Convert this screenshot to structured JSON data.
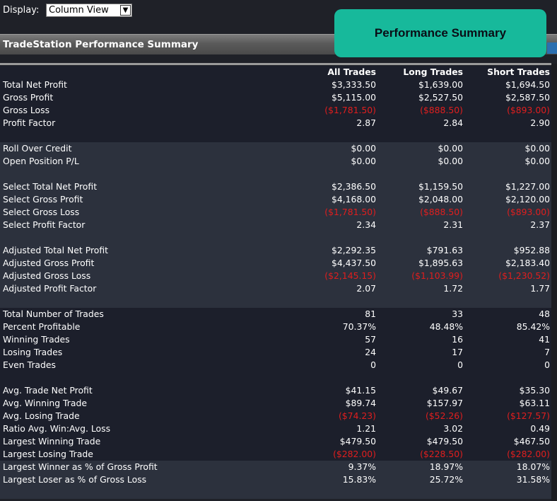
{
  "display": {
    "label": "Display:",
    "selected": "Column View"
  },
  "badge": "Performance Summary",
  "title": "TradeStation Performance Summary",
  "columns": [
    "All Trades",
    "Long Trades",
    "Short Trades"
  ],
  "groups": [
    {
      "shade": "dark",
      "rows": [
        {
          "label": "Total Net Profit",
          "values": [
            "$3,333.50",
            "$1,639.00",
            "$1,694.50"
          ]
        },
        {
          "label": "Gross Profit",
          "values": [
            "$5,115.00",
            "$2,527.50",
            "$2,587.50"
          ]
        },
        {
          "label": "Gross Loss",
          "values": [
            "($1,781.50)",
            "($888.50)",
            "($893.00)"
          ],
          "neg": true
        },
        {
          "label": "Profit Factor",
          "values": [
            "2.87",
            "2.84",
            "2.90"
          ]
        },
        {
          "label": "",
          "values": [
            "",
            "",
            ""
          ]
        }
      ]
    },
    {
      "shade": "light",
      "rows": [
        {
          "label": "Roll Over Credit",
          "values": [
            "$0.00",
            "$0.00",
            "$0.00"
          ]
        },
        {
          "label": "Open Position P/L",
          "values": [
            "$0.00",
            "$0.00",
            "$0.00"
          ]
        },
        {
          "label": "",
          "values": [
            "",
            "",
            ""
          ]
        },
        {
          "label": "Select Total Net Profit",
          "values": [
            "$2,386.50",
            "$1,159.50",
            "$1,227.00"
          ]
        },
        {
          "label": "Select Gross Profit",
          "values": [
            "$4,168.00",
            "$2,048.00",
            "$2,120.00"
          ]
        },
        {
          "label": "Select Gross Loss",
          "values": [
            "($1,781.50)",
            "($888.50)",
            "($893.00)"
          ],
          "neg": true
        },
        {
          "label": "Select Profit Factor",
          "values": [
            "2.34",
            "2.31",
            "2.37"
          ]
        },
        {
          "label": "",
          "values": [
            "",
            "",
            ""
          ]
        },
        {
          "label": "Adjusted Total Net Profit",
          "values": [
            "$2,292.35",
            "$791.63",
            "$952.88"
          ]
        },
        {
          "label": "Adjusted Gross Profit",
          "values": [
            "$4,437.50",
            "$1,895.63",
            "$2,183.40"
          ]
        },
        {
          "label": "Adjusted Gross Loss",
          "values": [
            "($2,145.15)",
            "($1,103.99)",
            "($1,230.52)"
          ],
          "neg": true
        },
        {
          "label": "Adjusted Profit Factor",
          "values": [
            "2.07",
            "1.72",
            "1.77"
          ]
        },
        {
          "label": "",
          "values": [
            "",
            "",
            ""
          ]
        }
      ]
    },
    {
      "shade": "dark",
      "rows": [
        {
          "label": "Total Number of Trades",
          "values": [
            "81",
            "33",
            "48"
          ]
        },
        {
          "label": "Percent Profitable",
          "values": [
            "70.37%",
            "48.48%",
            "85.42%"
          ]
        },
        {
          "label": "Winning Trades",
          "values": [
            "57",
            "16",
            "41"
          ]
        },
        {
          "label": "Losing Trades",
          "values": [
            "24",
            "17",
            "7"
          ]
        },
        {
          "label": "Even Trades",
          "values": [
            "0",
            "0",
            "0"
          ]
        },
        {
          "label": "",
          "values": [
            "",
            "",
            ""
          ]
        },
        {
          "label": "Avg. Trade Net Profit",
          "values": [
            "$41.15",
            "$49.67",
            "$35.30"
          ]
        },
        {
          "label": "Avg. Winning Trade",
          "values": [
            "$89.74",
            "$157.97",
            "$63.11"
          ]
        },
        {
          "label": "Avg. Losing Trade",
          "values": [
            "($74.23)",
            "($52.26)",
            "($127.57)"
          ],
          "neg": true
        },
        {
          "label": "Ratio Avg. Win:Avg. Loss",
          "values": [
            "1.21",
            "3.02",
            "0.49"
          ]
        },
        {
          "label": "Largest Winning Trade",
          "values": [
            "$479.50",
            "$479.50",
            "$467.50"
          ]
        },
        {
          "label": "Largest Losing Trade",
          "values": [
            "($282.00)",
            "($228.50)",
            "($282.00)"
          ],
          "neg": true
        }
      ]
    },
    {
      "shade": "light",
      "rows": [
        {
          "label": "Largest Winner as % of Gross Profit",
          "values": [
            "9.37%",
            "18.97%",
            "18.07%"
          ]
        },
        {
          "label": "Largest Loser as % of Gross Loss",
          "values": [
            "15.83%",
            "25.72%",
            "31.58%"
          ]
        },
        {
          "label": "",
          "values": [
            "",
            "",
            ""
          ]
        }
      ]
    }
  ]
}
